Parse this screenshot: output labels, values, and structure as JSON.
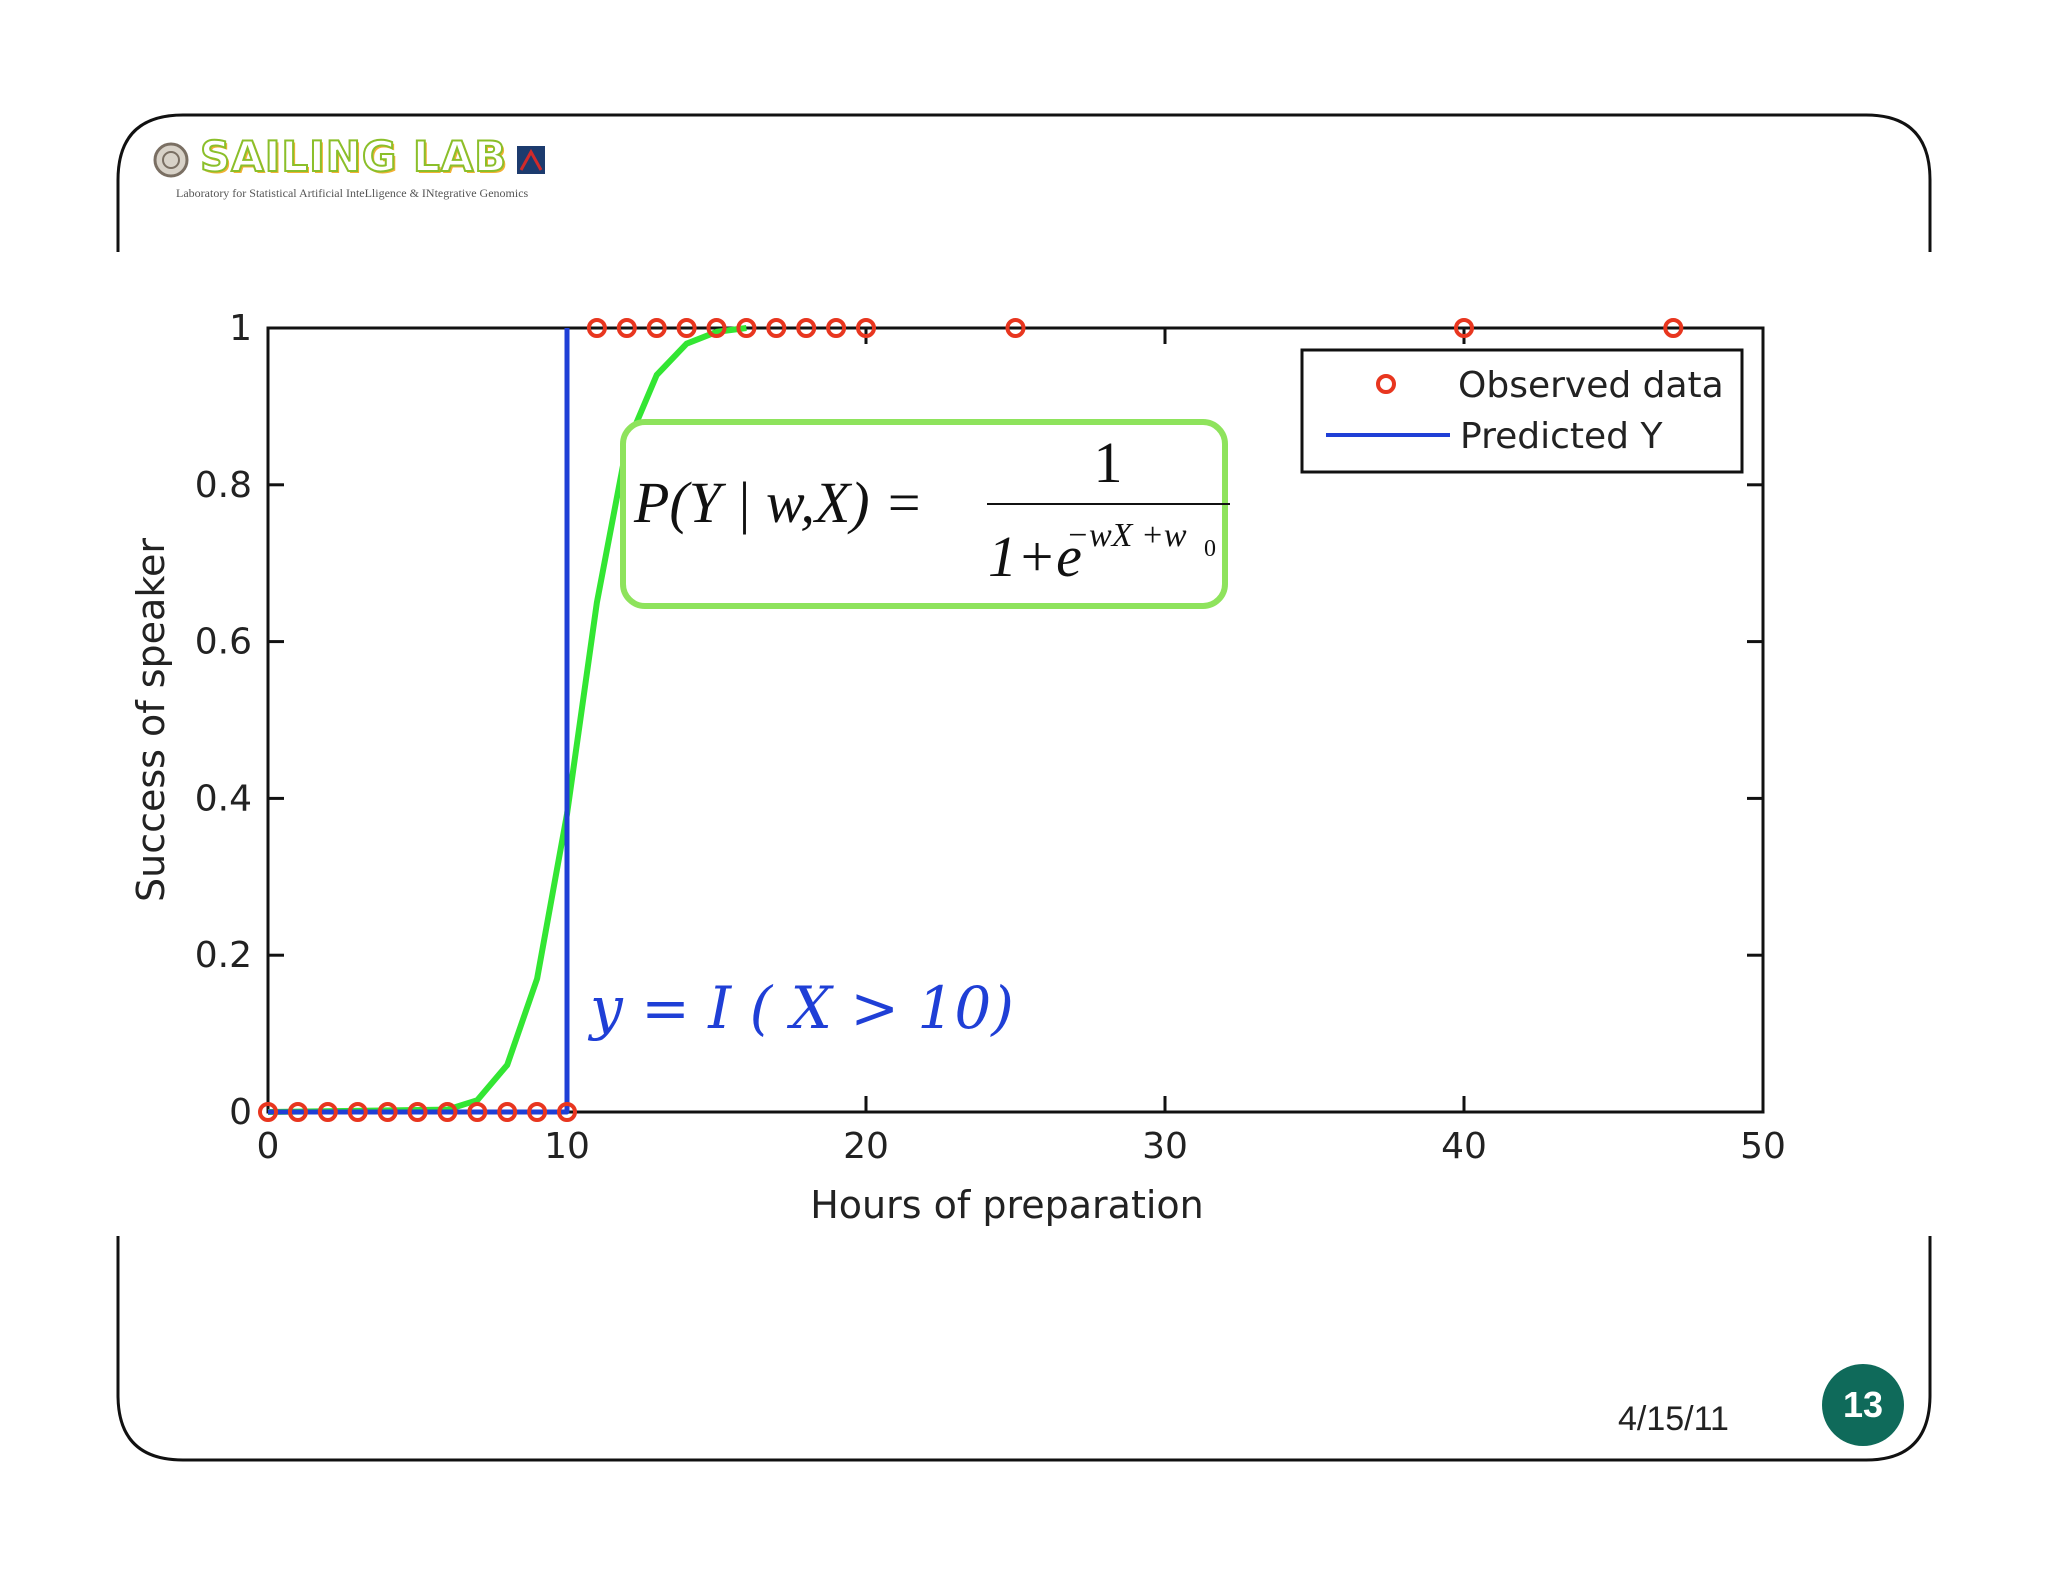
{
  "logo": {
    "title": "SAILING LAB",
    "subtitle": "Laboratory for Statistical Artificial InteLligence & INtegrative Genomics"
  },
  "footer": {
    "date": "4/15/11",
    "page_number": "13",
    "badge_color": "#0f6a5a"
  },
  "formula": {
    "lhs": "P(Y | w,X) =",
    "numerator": "1",
    "denominator": "1+e",
    "exponent": "−wX +w",
    "exponent_sub": "0",
    "box_color": "#8ee35c"
  },
  "annotation": {
    "text": "y = I ( X > 10)",
    "color": "#1f3fd6"
  },
  "chart_data": {
    "type": "scatter",
    "xlabel": "Hours of preparation",
    "ylabel": "Success of speaker",
    "xlim": [
      0,
      50
    ],
    "ylim": [
      0,
      1
    ],
    "xticks": [
      0,
      10,
      20,
      30,
      40,
      50
    ],
    "yticks": [
      0,
      0.2,
      0.4,
      0.6,
      0.8,
      1
    ],
    "xtick_labels": [
      "0",
      "10",
      "20",
      "30",
      "40",
      "50"
    ],
    "ytick_labels": [
      "0",
      "0.2",
      "0.4",
      "0.6",
      "0.8",
      "1"
    ],
    "grid": false,
    "legend_position": "top-right",
    "series": [
      {
        "name": "Observed data",
        "kind": "markers",
        "color": "#e8361f",
        "points": [
          [
            0,
            0
          ],
          [
            1,
            0
          ],
          [
            2,
            0
          ],
          [
            3,
            0
          ],
          [
            4,
            0
          ],
          [
            5,
            0
          ],
          [
            6,
            0
          ],
          [
            7,
            0
          ],
          [
            8,
            0
          ],
          [
            9,
            0
          ],
          [
            10,
            0
          ],
          [
            11,
            1
          ],
          [
            12,
            1
          ],
          [
            13,
            1
          ],
          [
            14,
            1
          ],
          [
            15,
            1
          ],
          [
            16,
            1
          ],
          [
            17,
            1
          ],
          [
            18,
            1
          ],
          [
            19,
            1
          ],
          [
            20,
            1
          ],
          [
            25,
            1
          ],
          [
            40,
            1
          ],
          [
            47,
            1
          ]
        ]
      },
      {
        "name": "Predicted Y",
        "kind": "step",
        "color": "#1f3fd6",
        "points": [
          [
            0,
            0
          ],
          [
            10,
            0
          ],
          [
            10,
            1
          ]
        ]
      },
      {
        "kind": "curve",
        "color": "#33e633",
        "points": [
          [
            0,
            0
          ],
          [
            6,
            0.003
          ],
          [
            7,
            0.015
          ],
          [
            8,
            0.06
          ],
          [
            9,
            0.17
          ],
          [
            10,
            0.38
          ],
          [
            11,
            0.65
          ],
          [
            12,
            0.85
          ],
          [
            13,
            0.94
          ],
          [
            14,
            0.98
          ],
          [
            15,
            0.995
          ],
          [
            16,
            1
          ]
        ]
      }
    ]
  }
}
